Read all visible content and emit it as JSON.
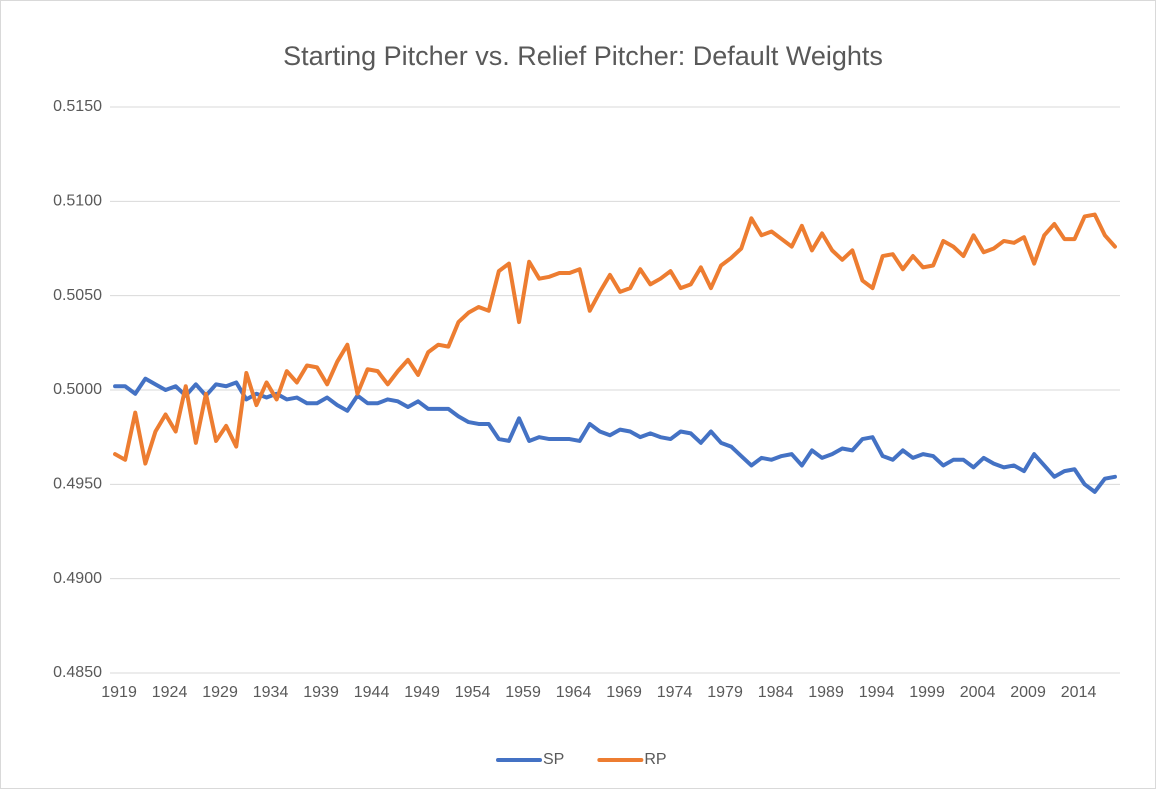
{
  "chart_data": {
    "type": "line",
    "title": "Starting Pitcher vs. Relief Pitcher: Default Weights",
    "categories": [
      "1919",
      null,
      null,
      null,
      null,
      "1924",
      null,
      null,
      null,
      null,
      "1929",
      null,
      null,
      null,
      null,
      "1934",
      null,
      null,
      null,
      null,
      "1939",
      null,
      null,
      null,
      null,
      "1944",
      null,
      null,
      null,
      null,
      "1949",
      null,
      null,
      null,
      null,
      "1954",
      null,
      null,
      null,
      null,
      "1959",
      null,
      null,
      null,
      null,
      "1964",
      null,
      null,
      null,
      null,
      "1969",
      null,
      null,
      null,
      null,
      "1974",
      null,
      null,
      null,
      null,
      "1979",
      null,
      null,
      null,
      null,
      "1984",
      null,
      null,
      null,
      null,
      "1989",
      null,
      null,
      null,
      null,
      "1994",
      null,
      null,
      null,
      null,
      "1999",
      null,
      null,
      null,
      null,
      "2004",
      null,
      null,
      null,
      null,
      "2009",
      null,
      null,
      null,
      null,
      "2014",
      null,
      null,
      null,
      null
    ],
    "series": [
      {
        "name": "SP",
        "color": "#4472c4",
        "values": [
          0.5002,
          0.5002,
          0.4998,
          0.5006,
          0.5003,
          0.5,
          0.5002,
          0.4997,
          0.5003,
          0.4997,
          0.5003,
          0.5002,
          0.5004,
          0.4995,
          0.4998,
          0.4996,
          0.4998,
          0.4995,
          0.4996,
          0.4993,
          0.4993,
          0.4996,
          0.4992,
          0.4989,
          0.4997,
          0.4993,
          0.4993,
          0.4995,
          0.4994,
          0.4991,
          0.4994,
          0.499,
          0.499,
          0.499,
          0.4986,
          0.4983,
          0.4982,
          0.4982,
          0.4974,
          0.4973,
          0.4985,
          0.4973,
          0.4975,
          0.4974,
          0.4974,
          0.4974,
          0.4973,
          0.4982,
          0.4978,
          0.4976,
          0.4979,
          0.4978,
          0.4975,
          0.4977,
          0.4975,
          0.4974,
          0.4978,
          0.4977,
          0.4972,
          0.4978,
          0.4972,
          0.497,
          0.4965,
          0.496,
          0.4964,
          0.4963,
          0.4965,
          0.4966,
          0.496,
          0.4968,
          0.4964,
          0.4966,
          0.4969,
          0.4968,
          0.4974,
          0.4975,
          0.4965,
          0.4963,
          0.4968,
          0.4964,
          0.4966,
          0.4965,
          0.496,
          0.4963,
          0.4963,
          0.4959,
          0.4964,
          0.4961,
          0.4959,
          0.496,
          0.4957,
          0.4966,
          0.496,
          0.4954,
          0.4957,
          0.4958,
          0.495,
          0.4946,
          0.4953,
          0.4954
        ]
      },
      {
        "name": "RP",
        "color": "#ed7d31",
        "values": [
          0.4966,
          0.4963,
          0.4988,
          0.4961,
          0.4978,
          0.4987,
          0.4978,
          0.5002,
          0.4972,
          0.4998,
          0.4973,
          0.4981,
          0.497,
          0.5009,
          0.4992,
          0.5004,
          0.4995,
          0.501,
          0.5004,
          0.5013,
          0.5012,
          0.5003,
          0.5015,
          0.5024,
          0.4998,
          0.5011,
          0.501,
          0.5003,
          0.501,
          0.5016,
          0.5008,
          0.502,
          0.5024,
          0.5023,
          0.5036,
          0.5041,
          0.5044,
          0.5042,
          0.5063,
          0.5067,
          0.5036,
          0.5068,
          0.5059,
          0.506,
          0.5062,
          0.5062,
          0.5064,
          0.5042,
          0.5052,
          0.5061,
          0.5052,
          0.5054,
          0.5064,
          0.5056,
          0.5059,
          0.5063,
          0.5054,
          0.5056,
          0.5065,
          0.5054,
          0.5066,
          0.507,
          0.5075,
          0.5091,
          0.5082,
          0.5084,
          0.508,
          0.5076,
          0.5087,
          0.5074,
          0.5083,
          0.5074,
          0.5069,
          0.5074,
          0.5058,
          0.5054,
          0.5071,
          0.5072,
          0.5064,
          0.5071,
          0.5065,
          0.5066,
          0.5079,
          0.5076,
          0.5071,
          0.5082,
          0.5073,
          0.5075,
          0.5079,
          0.5078,
          0.5081,
          0.5067,
          0.5082,
          0.5088,
          0.508,
          0.508,
          0.5092,
          0.5093,
          0.5082,
          0.5076
        ]
      }
    ],
    "ylim": [
      0.485,
      0.515
    ],
    "yticks": [
      {
        "value": 0.485,
        "label": "0.4850"
      },
      {
        "value": 0.49,
        "label": "0.4900"
      },
      {
        "value": 0.495,
        "label": "0.4950"
      },
      {
        "value": 0.5,
        "label": "0.5000"
      },
      {
        "value": 0.505,
        "label": "0.5050"
      },
      {
        "value": 0.51,
        "label": "0.5100"
      },
      {
        "value": 0.515,
        "label": "0.5150"
      }
    ],
    "grid": true,
    "legend": "bottom"
  }
}
